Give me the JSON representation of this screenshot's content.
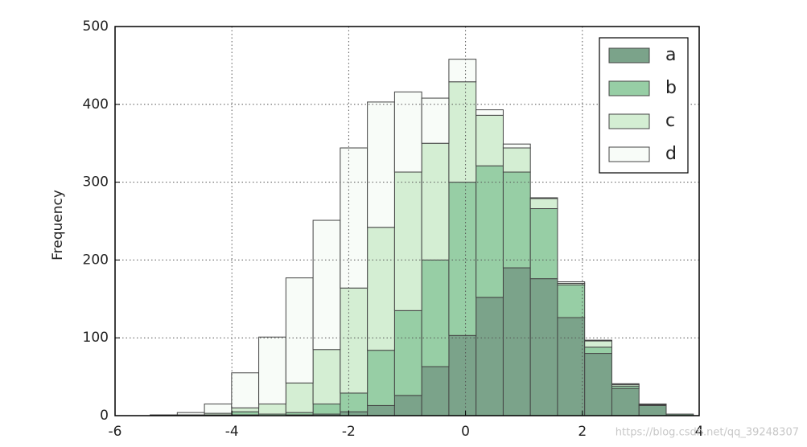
{
  "chart_data": {
    "type": "histogram",
    "stacked": true,
    "ylabel": "Frequency",
    "bins": [
      -5.4,
      -4.935,
      -4.47,
      -4.005,
      -3.54,
      -3.075,
      -2.61,
      -2.145,
      -1.68,
      -1.215,
      -0.75,
      -0.285,
      0.18,
      0.645,
      1.11,
      1.575,
      2.04,
      2.505,
      2.97,
      3.435,
      3.9
    ],
    "series": [
      {
        "name": "a",
        "color": "#7ba38a",
        "values": [
          0,
          0,
          0,
          1,
          0,
          1,
          2,
          5,
          13,
          26,
          63,
          103,
          152,
          190,
          176,
          126,
          80,
          35,
          13,
          2
        ]
      },
      {
        "name": "b",
        "color": "#97cea5",
        "values": [
          0,
          0,
          1,
          4,
          2,
          3,
          13,
          24,
          71,
          109,
          137,
          197,
          169,
          123,
          90,
          42,
          8,
          3,
          1,
          0
        ]
      },
      {
        "name": "c",
        "color": "#d4eed3",
        "values": [
          0,
          1,
          2,
          5,
          13,
          38,
          70,
          135,
          158,
          178,
          150,
          129,
          65,
          31,
          13,
          2,
          8,
          2,
          1,
          0
        ]
      },
      {
        "name": "d",
        "color": "#f8fcf8",
        "values": [
          1,
          3,
          12,
          45,
          86,
          135,
          166,
          180,
          161,
          103,
          58,
          29,
          7,
          5,
          1,
          2,
          1,
          1,
          0,
          0
        ]
      }
    ],
    "xlim": [
      -6,
      4
    ],
    "xticks": [
      -6,
      -4,
      -2,
      0,
      2,
      4
    ],
    "ylim": [
      0,
      500
    ],
    "yticks": [
      0,
      100,
      200,
      300,
      400,
      500
    ],
    "grid": true,
    "legend": "upper right",
    "watermark": "https://blog.csdn.net/qq_39248307"
  }
}
